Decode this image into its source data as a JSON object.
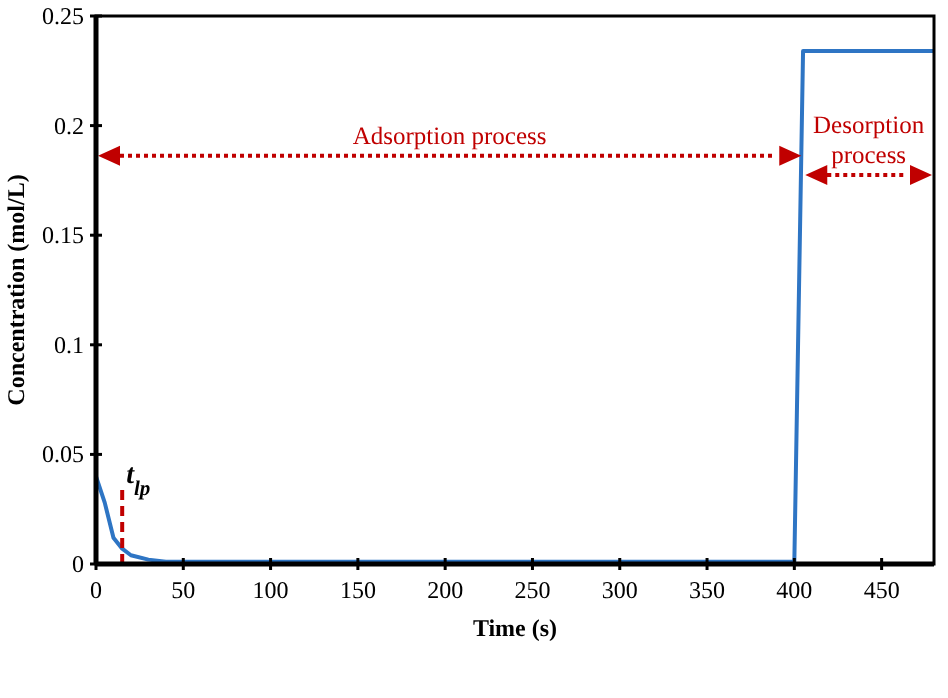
{
  "chart_data": {
    "type": "line",
    "xlabel": "Time (s)",
    "ylabel": "Concentration (mol/L)",
    "series": [
      {
        "color": "#2e75c4",
        "x": [
          0,
          5,
          10,
          15,
          20,
          30,
          40,
          50,
          100,
          200,
          300,
          400,
          405,
          480
        ],
        "values": [
          0.04,
          0.028,
          0.012,
          0.007,
          0.004,
          0.002,
          0.001,
          0.001,
          0.001,
          0.001,
          0.001,
          0.001,
          0.234,
          0.234
        ]
      }
    ],
    "xlim": [
      0,
      480
    ],
    "xticks": [
      0,
      50,
      100,
      150,
      200,
      250,
      300,
      350,
      400,
      450
    ],
    "ylim": [
      0,
      0.25
    ],
    "yticks": [
      0,
      0.05,
      0.1,
      0.15,
      0.2,
      0.25
    ],
    "grid": false,
    "marker": "none",
    "line_style": "solid",
    "ref_lines": [
      {
        "axis": "x",
        "value": 15,
        "label": "t$_{lp}$",
        "color": "#c00000",
        "line_style": "dashed"
      }
    ],
    "annotations": [
      "Adsorption process",
      "Desorption\nprocess"
    ]
  }
}
